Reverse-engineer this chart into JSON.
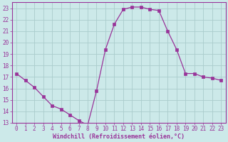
{
  "x": [
    0,
    1,
    2,
    3,
    4,
    5,
    6,
    7,
    8,
    9,
    10,
    11,
    12,
    13,
    14,
    15,
    16,
    17,
    18,
    19,
    20,
    21,
    22,
    23
  ],
  "y": [
    17.3,
    16.7,
    16.1,
    15.3,
    14.5,
    14.2,
    13.7,
    13.2,
    12.8,
    15.8,
    19.4,
    21.6,
    22.9,
    23.1,
    23.1,
    22.9,
    22.8,
    21.0,
    19.4,
    17.3,
    17.3,
    17.0,
    16.9,
    16.7
  ],
  "line_color": "#993399",
  "marker": "s",
  "marker_size": 2.5,
  "bg_color": "#cce9e9",
  "grid_color": "#aacccc",
  "xlabel": "Windchill (Refroidissement éolien,°C)",
  "xlabel_color": "#993399",
  "tick_color": "#993399",
  "label_color": "#993399",
  "ylim": [
    13,
    23.5
  ],
  "xlim": [
    -0.5,
    23.5
  ],
  "yticks": [
    13,
    14,
    15,
    16,
    17,
    18,
    19,
    20,
    21,
    22,
    23
  ],
  "xticks": [
    0,
    1,
    2,
    3,
    4,
    5,
    6,
    7,
    8,
    9,
    10,
    11,
    12,
    13,
    14,
    15,
    16,
    17,
    18,
    19,
    20,
    21,
    22,
    23
  ],
  "tick_fontsize": 5.5,
  "xlabel_fontsize": 6.0,
  "spine_color": "#993399"
}
